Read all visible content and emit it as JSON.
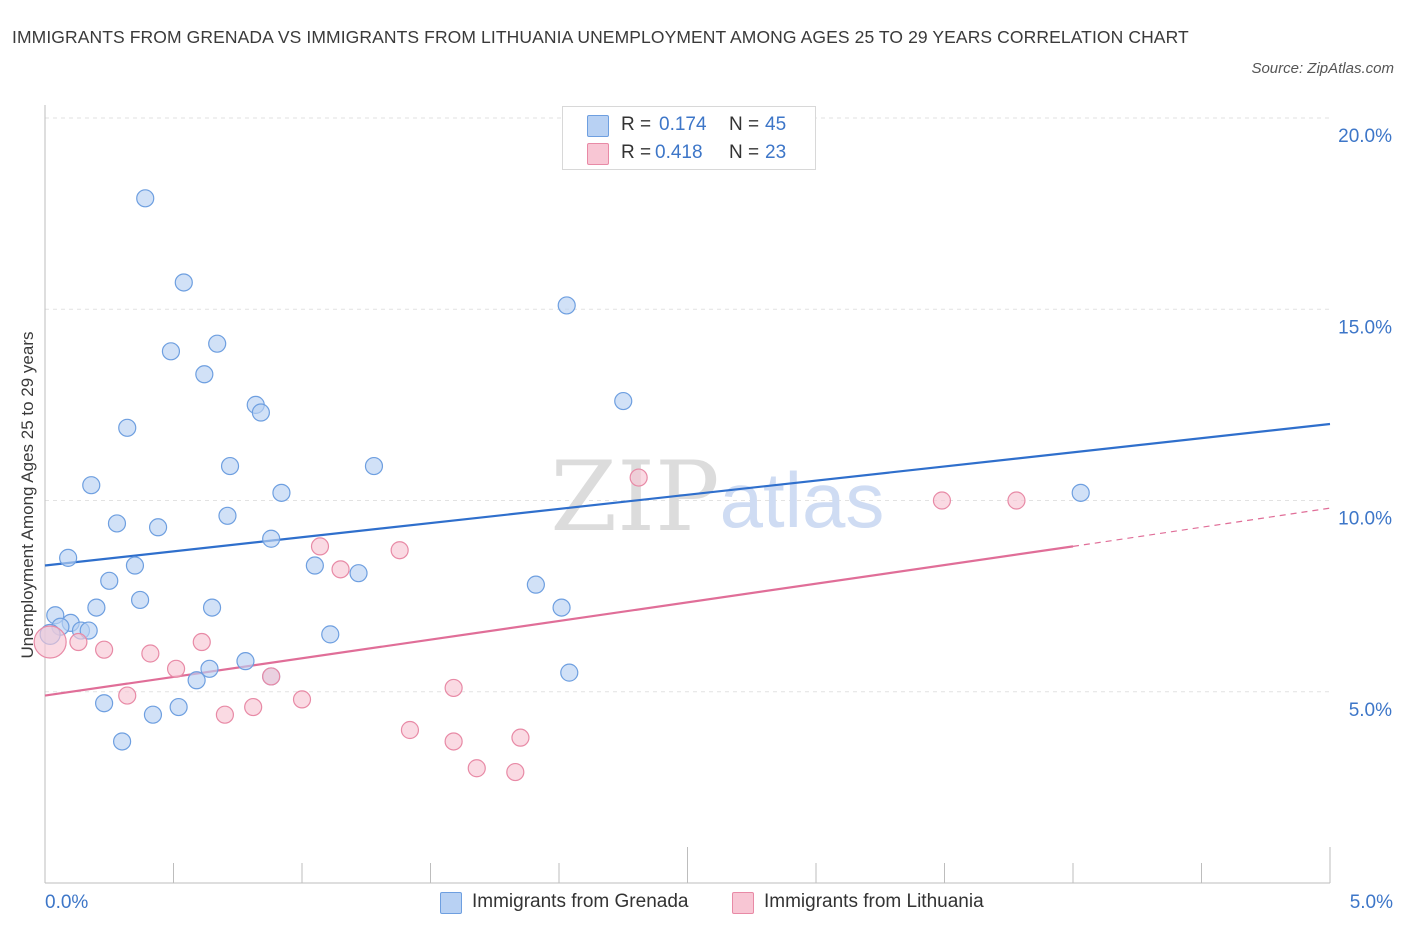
{
  "title": "IMMIGRANTS FROM GRENADA VS IMMIGRANTS FROM LITHUANIA UNEMPLOYMENT AMONG AGES 25 TO 29 YEARS CORRELATION CHART",
  "source": "Source: ZipAtlas.com",
  "watermark": {
    "zip": "ZIP",
    "atlas": "atlas"
  },
  "legend": {
    "r_label": "R =",
    "n_label": "N =",
    "rows": [
      {
        "r": "0.174",
        "n": "45",
        "fill": "#b8d1f3",
        "stroke": "#6e9fe0"
      },
      {
        "r": "0.418",
        "n": "23",
        "fill": "#f8c6d4",
        "stroke": "#e88aa6"
      }
    ]
  },
  "bottom_legend": [
    {
      "label": "Immigrants from Grenada",
      "fill": "#b8d1f3",
      "stroke": "#6e9fe0"
    },
    {
      "label": "Immigrants from Lithuania",
      "fill": "#f8c6d4",
      "stroke": "#e88aa6"
    }
  ],
  "chart_data": {
    "type": "scatter",
    "title": "Immigrants from Grenada vs Immigrants from Lithuania Unemployment Among Ages 25 to 29 years Correlation Chart",
    "xlabel": "",
    "ylabel": "Unemployment Among Ages 25 to 29 years",
    "xlim": [
      0,
      5
    ],
    "ylim": [
      0,
      20
    ],
    "x_tick_labels": [
      "0.0%",
      "5.0%"
    ],
    "y_ticks": [
      5,
      10,
      15,
      20
    ],
    "y_tick_labels": [
      "5.0%",
      "10.0%",
      "15.0%",
      "20.0%"
    ],
    "grid": true,
    "legend_position": "top-center",
    "series": [
      {
        "name": "Immigrants from Grenada",
        "color": "#6e9fe0",
        "fill": "#b8d1f3",
        "line_color": "#2f6fcc",
        "trend": {
          "x": [
            0,
            5
          ],
          "y": [
            8.3,
            12.0
          ]
        },
        "points": [
          [
            0.39,
            17.9
          ],
          [
            0.54,
            15.7
          ],
          [
            0.49,
            13.9
          ],
          [
            0.67,
            14.1
          ],
          [
            0.62,
            13.3
          ],
          [
            0.82,
            12.5
          ],
          [
            0.84,
            12.3
          ],
          [
            0.32,
            11.9
          ],
          [
            0.72,
            10.9
          ],
          [
            1.28,
            10.9
          ],
          [
            0.18,
            10.4
          ],
          [
            0.92,
            10.2
          ],
          [
            0.28,
            9.4
          ],
          [
            0.71,
            9.6
          ],
          [
            0.44,
            9.3
          ],
          [
            0.88,
            9.0
          ],
          [
            0.09,
            8.5
          ],
          [
            0.35,
            8.3
          ],
          [
            1.05,
            8.3
          ],
          [
            1.22,
            8.1
          ],
          [
            0.25,
            7.9
          ],
          [
            0.37,
            7.4
          ],
          [
            0.2,
            7.2
          ],
          [
            0.65,
            7.2
          ],
          [
            0.04,
            7.0
          ],
          [
            0.1,
            6.8
          ],
          [
            0.06,
            6.7
          ],
          [
            0.14,
            6.6
          ],
          [
            0.17,
            6.6
          ],
          [
            0.02,
            6.5
          ],
          [
            1.11,
            6.5
          ],
          [
            0.78,
            5.8
          ],
          [
            0.64,
            5.6
          ],
          [
            0.59,
            5.3
          ],
          [
            0.88,
            5.4
          ],
          [
            0.23,
            4.7
          ],
          [
            0.52,
            4.6
          ],
          [
            0.42,
            4.4
          ],
          [
            0.3,
            3.7
          ],
          [
            2.03,
            15.1
          ],
          [
            2.25,
            12.6
          ],
          [
            2.04,
            5.5
          ],
          [
            1.91,
            7.8
          ],
          [
            2.01,
            7.2
          ],
          [
            4.03,
            10.2
          ]
        ]
      },
      {
        "name": "Immigrants from Lithuania",
        "color": "#e88aa6",
        "fill": "#f8c6d4",
        "line_color": "#e06e98",
        "trend": {
          "x": [
            0,
            4.0
          ],
          "y": [
            4.9,
            8.8
          ]
        },
        "trend_dashed_extension": {
          "x": [
            4.0,
            5
          ],
          "y": [
            8.8,
            9.8
          ]
        },
        "points": [
          [
            0.02,
            6.3
          ],
          [
            0.13,
            6.3
          ],
          [
            0.23,
            6.1
          ],
          [
            0.41,
            6.0
          ],
          [
            0.61,
            6.3
          ],
          [
            0.51,
            5.6
          ],
          [
            0.88,
            5.4
          ],
          [
            0.32,
            4.9
          ],
          [
            0.81,
            4.6
          ],
          [
            0.7,
            4.4
          ],
          [
            1.0,
            4.8
          ],
          [
            1.07,
            8.8
          ],
          [
            1.15,
            8.2
          ],
          [
            1.38,
            8.7
          ],
          [
            1.42,
            4.0
          ],
          [
            1.59,
            3.7
          ],
          [
            1.59,
            5.1
          ],
          [
            1.68,
            3.0
          ],
          [
            1.83,
            2.9
          ],
          [
            1.85,
            3.8
          ],
          [
            2.31,
            10.6
          ],
          [
            3.49,
            10.0
          ],
          [
            3.78,
            10.0
          ]
        ]
      }
    ]
  }
}
